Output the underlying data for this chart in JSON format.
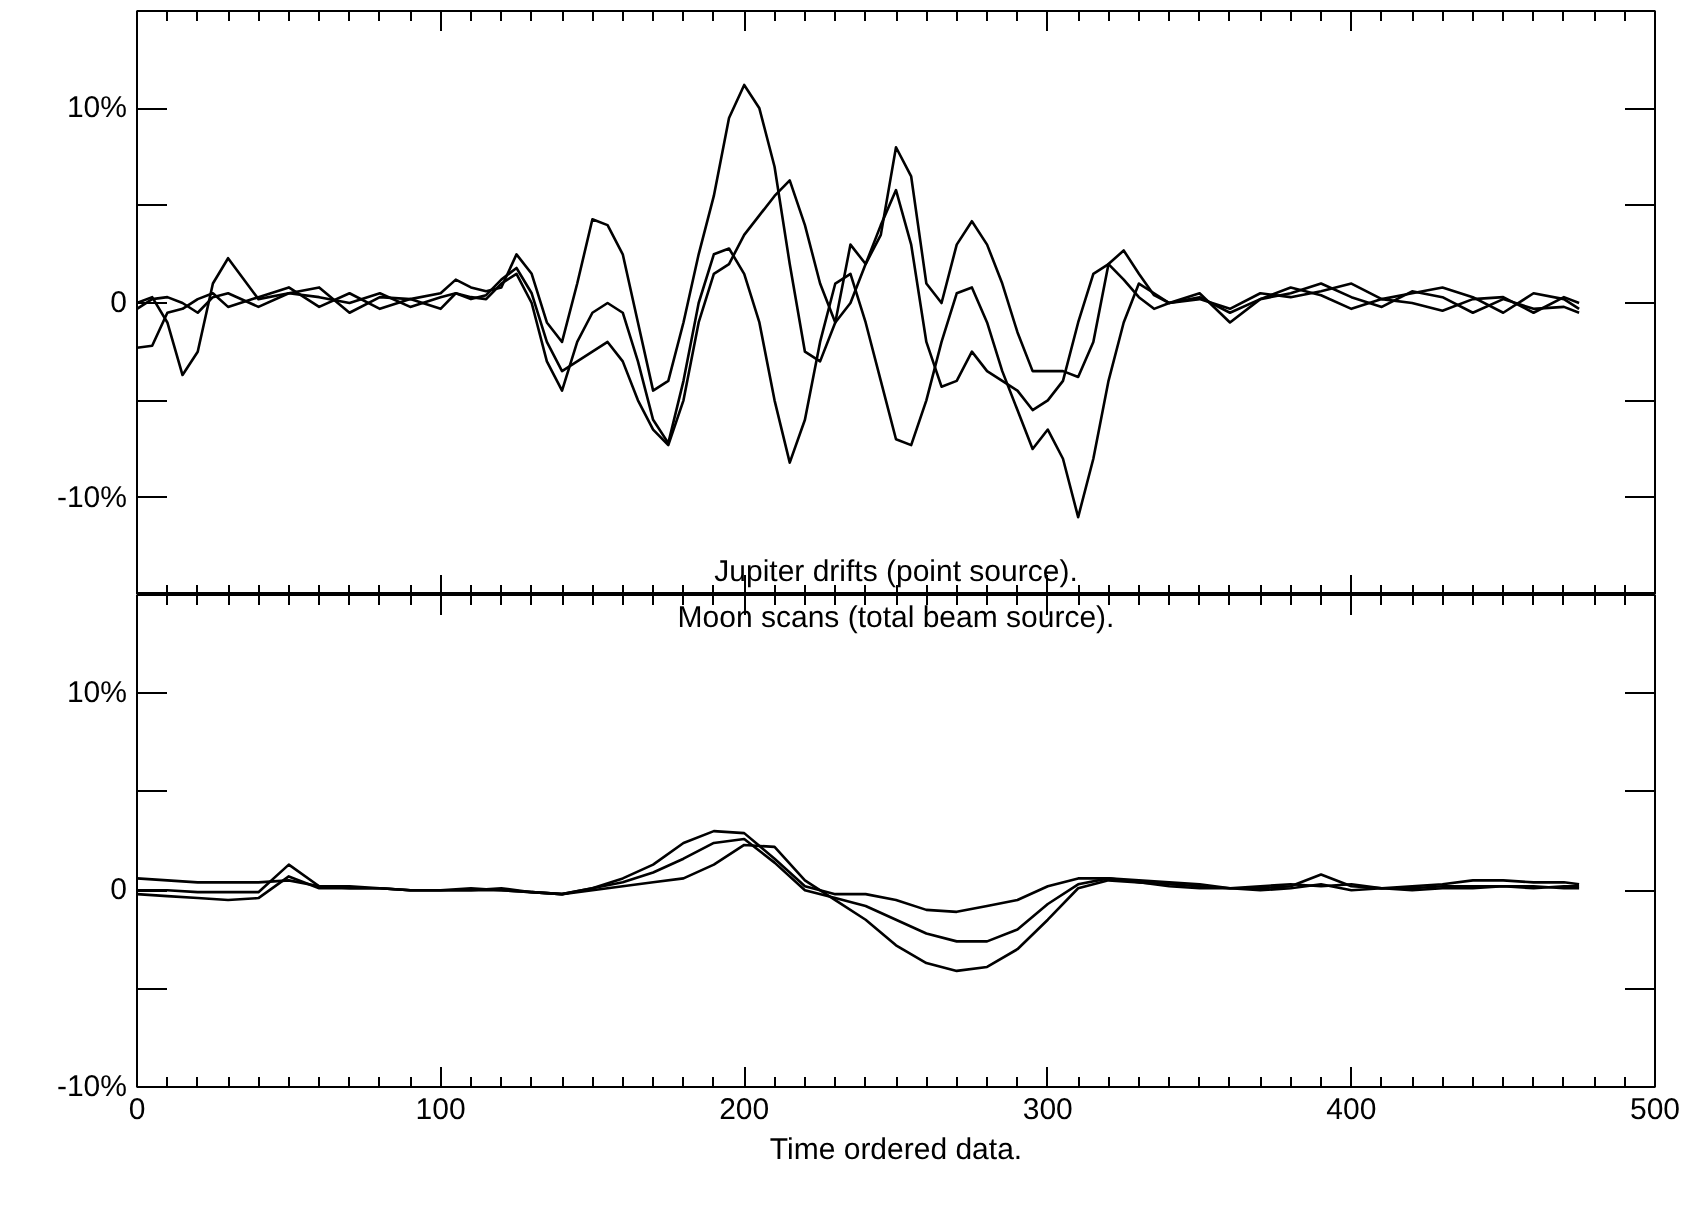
{
  "chart_data": [
    {
      "type": "line",
      "annotations": [
        "Jupiter drifts (point source)."
      ],
      "x": [
        0,
        5,
        10,
        15,
        20,
        25,
        30,
        40,
        50,
        60,
        70,
        80,
        90,
        100,
        105,
        110,
        115,
        120,
        125,
        130,
        135,
        140,
        145,
        150,
        155,
        160,
        165,
        170,
        175,
        180,
        185,
        190,
        195,
        200,
        205,
        210,
        215,
        220,
        225,
        230,
        235,
        240,
        245,
        250,
        255,
        260,
        265,
        270,
        275,
        280,
        285,
        290,
        295,
        300,
        305,
        310,
        315,
        320,
        325,
        330,
        335,
        340,
        350,
        360,
        370,
        380,
        390,
        400,
        410,
        420,
        430,
        440,
        450,
        460,
        470,
        475
      ],
      "series": [
        {
          "color": "#000000",
          "values": [
            -2.3,
            -2.2,
            -0.5,
            -0.3,
            0.2,
            0.5,
            -0.2,
            0.3,
            0.8,
            -0.2,
            0.5,
            -0.3,
            0.2,
            0.5,
            1.2,
            0.8,
            0.6,
            0.8,
            2.5,
            1.5,
            -1,
            -2,
            1,
            4.3,
            4,
            2.5,
            -1,
            -4.5,
            -4,
            -1,
            2.5,
            5.5,
            9.5,
            11.2,
            10,
            7,
            2,
            -2.5,
            -3,
            -1,
            3,
            2,
            3.5,
            8,
            6.5,
            1,
            0,
            3,
            4.2,
            3,
            1,
            -1.5,
            -3.5,
            -3.5,
            -3.5,
            -3.8,
            -2,
            2,
            2.7,
            1.5,
            0.4,
            0,
            0.3,
            -0.5,
            0.2,
            0.5,
            1,
            0.3,
            -0.2,
            0.6,
            0.3,
            -0.5,
            0.2,
            -0.3,
            -0.2,
            -0.5
          ]
        },
        {
          "color": "#000000",
          "values": [
            0,
            0.3,
            -1,
            -3.7,
            -2.5,
            1,
            2.3,
            0.2,
            0.5,
            0.8,
            -0.5,
            0.3,
            0.2,
            -0.3,
            0.5,
            0.3,
            0.2,
            1,
            1.5,
            0,
            -3,
            -4.5,
            -2,
            -0.5,
            0,
            -0.5,
            -3,
            -6,
            -7.2,
            -4,
            0,
            2.5,
            2.8,
            1.5,
            -1,
            -5,
            -8.2,
            -6,
            -2,
            1,
            1.5,
            -1,
            -4,
            -7,
            -7.3,
            -5,
            -2,
            0.5,
            0.8,
            -1,
            -3.5,
            -5.5,
            -7.5,
            -6.5,
            -8,
            -11,
            -8,
            -4,
            -1,
            1,
            0.5,
            0,
            0.5,
            -1,
            0.2,
            0.8,
            0.4,
            -0.3,
            0.2,
            0.5,
            0.8,
            0.3,
            -0.5,
            0.5,
            0.2,
            -0.3
          ]
        },
        {
          "color": "#000000",
          "values": [
            -0.3,
            0.2,
            0.3,
            0,
            -0.5,
            0.3,
            0.5,
            -0.2,
            0.5,
            0.3,
            0,
            0.5,
            -0.2,
            0.3,
            0.5,
            0.2,
            0.4,
            1.2,
            1.8,
            0.5,
            -2,
            -3.5,
            -3,
            -2.5,
            -2,
            -3,
            -5,
            -6.5,
            -7.3,
            -5,
            -1,
            1.5,
            2,
            3.5,
            4.5,
            5.5,
            6.3,
            4,
            1,
            -1,
            0,
            2,
            4,
            5.8,
            3,
            -2,
            -4.3,
            -4,
            -2.5,
            -3.5,
            -4,
            -4.5,
            -5.5,
            -5,
            -4,
            -1,
            1.5,
            2,
            1.2,
            0.3,
            -0.3,
            0,
            0.2,
            -0.3,
            0.5,
            0.3,
            0.6,
            1,
            0.2,
            0,
            -0.4,
            0.2,
            0.3,
            -0.5,
            0.3,
            0
          ]
        }
      ],
      "xlim": [
        0,
        500
      ],
      "xticks": [
        0,
        100,
        200,
        300,
        400,
        500
      ],
      "ylim": [
        -15,
        15
      ],
      "yticks": [
        {
          "value": 10,
          "label": "10%"
        },
        {
          "value": 5,
          "label": null
        },
        0,
        {
          "value": -5,
          "label": null
        },
        {
          "value": -10,
          "label": "-10%"
        }
      ],
      "tick_labels": "y"
    },
    {
      "type": "line",
      "annotations": [
        "Moon scans (total beam source)."
      ],
      "xlabel": "Time ordered data.",
      "x": [
        0,
        10,
        20,
        30,
        40,
        50,
        60,
        70,
        80,
        90,
        100,
        110,
        120,
        130,
        140,
        150,
        160,
        170,
        180,
        190,
        200,
        210,
        220,
        230,
        240,
        250,
        260,
        270,
        280,
        290,
        300,
        310,
        320,
        330,
        340,
        350,
        360,
        370,
        380,
        390,
        400,
        410,
        420,
        430,
        440,
        450,
        460,
        470,
        475
      ],
      "series": [
        {
          "color": "#000000",
          "values": [
            0.6,
            0.5,
            0.4,
            0.4,
            0.4,
            0.5,
            0.2,
            0.1,
            0.1,
            0,
            0,
            0,
            0,
            -0.1,
            -0.2,
            0.1,
            0.6,
            1.3,
            2.4,
            3.0,
            2.9,
            1.6,
            0.2,
            -0.2,
            -0.2,
            -0.5,
            -1,
            -1.1,
            -0.8,
            -0.5,
            0.2,
            0.6,
            0.6,
            0.5,
            0.4,
            0.3,
            0.1,
            0.2,
            0.3,
            0.2,
            0.3,
            0.1,
            0.2,
            0.3,
            0.5,
            0.5,
            0.4,
            0.4,
            0.3
          ]
        },
        {
          "color": "#000000",
          "values": [
            0,
            0,
            -0.1,
            -0.1,
            -0.1,
            1.3,
            0.2,
            0.2,
            0.1,
            0,
            0,
            0,
            0.1,
            -0.1,
            -0.2,
            0.1,
            0.4,
            0.9,
            1.6,
            2.4,
            2.6,
            1.4,
            0,
            -0.4,
            -0.8,
            -1.5,
            -2.2,
            -2.6,
            -2.6,
            -2,
            -0.7,
            0.3,
            0.6,
            0.4,
            0.3,
            0.2,
            0.1,
            0.1,
            0.2,
            0.8,
            0.2,
            0.1,
            0.1,
            0.2,
            0.2,
            0.2,
            0.2,
            0.1,
            0.1
          ]
        },
        {
          "color": "#000000",
          "values": [
            -0.2,
            -0.3,
            -0.4,
            -0.5,
            -0.4,
            0.7,
            0.1,
            0.1,
            0.1,
            0,
            0,
            0.1,
            0,
            -0.1,
            -0.2,
            0,
            0.2,
            0.4,
            0.6,
            1.3,
            2.3,
            2.2,
            0.5,
            -0.5,
            -1.5,
            -2.8,
            -3.7,
            -4.1,
            -3.9,
            -3,
            -1.5,
            0.1,
            0.5,
            0.4,
            0.2,
            0.1,
            0.1,
            0,
            0.1,
            0.3,
            0,
            0.1,
            0,
            0.1,
            0.1,
            0.2,
            0.1,
            0.2,
            0.2
          ]
        }
      ],
      "xlim": [
        0,
        500
      ],
      "xticks": [
        0,
        100,
        200,
        300,
        400,
        500
      ],
      "ylim": [
        -10,
        15
      ],
      "yticks": [
        {
          "value": 10,
          "label": "10%"
        },
        {
          "value": 5,
          "label": null
        },
        0,
        {
          "value": -5,
          "label": null
        },
        {
          "value": -10,
          "label": "-10%"
        }
      ]
    }
  ]
}
